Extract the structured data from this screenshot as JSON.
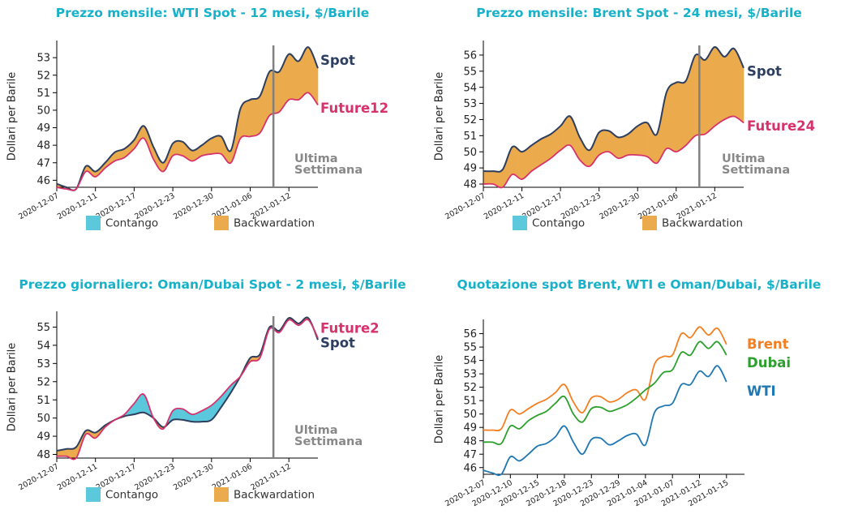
{
  "colors": {
    "title": "#17b1c9",
    "spot": "#2d3e5e",
    "future": "#d6336c",
    "contango": "#5bc8dc",
    "backwardation": "#ebab4d",
    "divider": "#808080",
    "annotation": "#888888",
    "brent": "#f47f20",
    "dubai": "#2ca02c",
    "wti": "#1f77b4"
  },
  "legend": {
    "contango": "Contango",
    "backwardation": "Backwardation"
  },
  "chart_data": [
    {
      "type": "area",
      "title": "Prezzo mensile: WTI Spot - 12 mesi, $/Barile",
      "ylabel": "Dollari per Barile",
      "ylim": [
        45.6,
        53.7
      ],
      "yticks": [
        46,
        47,
        48,
        49,
        50,
        51,
        52,
        53
      ],
      "xlim": [
        0,
        27
      ],
      "xticks": [
        {
          "x": 0,
          "label": "2020-12-07"
        },
        {
          "x": 4,
          "label": "2020-12-11"
        },
        {
          "x": 8,
          "label": "2020-12-17"
        },
        {
          "x": 12,
          "label": "2020-12-23"
        },
        {
          "x": 16,
          "label": "2020-12-30"
        },
        {
          "x": 20,
          "label": "2021-01-06"
        },
        {
          "x": 24,
          "label": "2021-01-12"
        }
      ],
      "x": [
        0,
        1,
        2,
        3,
        4,
        5,
        6,
        7,
        8,
        9,
        10,
        11,
        12,
        13,
        14,
        15,
        16,
        17,
        18,
        19,
        20,
        21,
        22,
        23,
        24,
        25,
        26,
        27
      ],
      "series": [
        {
          "name": "Spot",
          "values": [
            45.8,
            45.6,
            45.5,
            46.8,
            46.5,
            47.0,
            47.6,
            47.8,
            48.3,
            49.1,
            47.9,
            47.0,
            48.1,
            48.2,
            47.7,
            48.0,
            48.4,
            48.5,
            47.7,
            50.1,
            50.6,
            50.8,
            52.2,
            52.2,
            53.2,
            52.8,
            53.6,
            52.4
          ]
        },
        {
          "name": "Future12",
          "values": [
            45.6,
            45.5,
            45.5,
            46.5,
            46.2,
            46.7,
            47.1,
            47.3,
            47.8,
            48.4,
            47.2,
            46.5,
            47.4,
            47.4,
            47.1,
            47.4,
            47.5,
            47.5,
            47.0,
            48.4,
            48.5,
            48.7,
            49.7,
            49.9,
            50.6,
            50.6,
            51.0,
            50.3
          ]
        }
      ],
      "divider_x": 22.4,
      "divider_label": [
        "Ultima",
        "Settimana"
      ]
    },
    {
      "type": "area",
      "title": "Prezzo mensile: Brent Spot - 24 mesi, $/Barile",
      "ylabel": "Dollari per Barile",
      "ylim": [
        47.8,
        56.6
      ],
      "yticks": [
        48,
        49,
        50,
        51,
        52,
        53,
        54,
        55,
        56
      ],
      "xlim": [
        0,
        27
      ],
      "xticks": [
        {
          "x": 0,
          "label": "2020-12-07"
        },
        {
          "x": 4,
          "label": "2020-12-11"
        },
        {
          "x": 8,
          "label": "2020-12-17"
        },
        {
          "x": 12,
          "label": "2020-12-23"
        },
        {
          "x": 16,
          "label": "2020-12-30"
        },
        {
          "x": 20,
          "label": "2021-01-06"
        },
        {
          "x": 24,
          "label": "2021-01-12"
        }
      ],
      "x": [
        0,
        1,
        2,
        3,
        4,
        5,
        6,
        7,
        8,
        9,
        10,
        11,
        12,
        13,
        14,
        15,
        16,
        17,
        18,
        19,
        20,
        21,
        22,
        23,
        24,
        25,
        26,
        27
      ],
      "series": [
        {
          "name": "Spot",
          "values": [
            48.8,
            48.8,
            48.9,
            50.3,
            50.0,
            50.4,
            50.8,
            51.1,
            51.6,
            52.2,
            50.9,
            50.1,
            51.2,
            51.3,
            50.9,
            51.1,
            51.6,
            51.8,
            51.1,
            53.7,
            54.3,
            54.4,
            56.0,
            55.7,
            56.5,
            55.9,
            56.4,
            55.2
          ]
        },
        {
          "name": "Future24",
          "values": [
            48.0,
            48.0,
            47.8,
            48.6,
            48.3,
            48.8,
            49.2,
            49.6,
            50.1,
            50.4,
            49.5,
            49.1,
            49.8,
            50.0,
            49.6,
            49.8,
            49.8,
            49.7,
            49.3,
            50.2,
            50.0,
            50.4,
            51.0,
            51.1,
            51.6,
            52.0,
            52.2,
            51.8
          ]
        }
      ],
      "divider_x": 22.4,
      "divider_label": [
        "Ultima",
        "Settimana"
      ]
    },
    {
      "type": "area",
      "title": "Prezzo giornaliero: Oman/Dubai Spot - 2 mesi, $/Barile",
      "ylabel": "Dollari per Barile",
      "ylim": [
        47.8,
        55.6
      ],
      "yticks": [
        48,
        49,
        50,
        51,
        52,
        53,
        54,
        55
      ],
      "xlim": [
        0,
        27
      ],
      "xticks": [
        {
          "x": 0,
          "label": "2020-12-07"
        },
        {
          "x": 4,
          "label": "2020-12-11"
        },
        {
          "x": 8,
          "label": "2020-12-17"
        },
        {
          "x": 12,
          "label": "2020-12-23"
        },
        {
          "x": 16,
          "label": "2020-12-30"
        },
        {
          "x": 20,
          "label": "2021-01-06"
        },
        {
          "x": 24,
          "label": "2021-01-12"
        }
      ],
      "x": [
        0,
        1,
        2,
        3,
        4,
        5,
        6,
        7,
        8,
        9,
        10,
        11,
        12,
        13,
        14,
        15,
        16,
        17,
        18,
        19,
        20,
        21,
        22,
        23,
        24,
        25,
        26,
        27
      ],
      "series": [
        {
          "name": "Spot",
          "values": [
            48.2,
            48.3,
            48.4,
            49.3,
            49.2,
            49.6,
            49.9,
            50.1,
            50.2,
            50.3,
            50.0,
            49.5,
            49.9,
            49.9,
            49.8,
            49.8,
            49.9,
            50.6,
            51.4,
            52.3,
            53.3,
            53.5,
            55.0,
            54.8,
            55.5,
            55.2,
            55.5,
            54.3
          ]
        },
        {
          "name": "Future2",
          "values": [
            47.9,
            47.9,
            47.8,
            49.1,
            48.9,
            49.5,
            49.9,
            50.2,
            50.8,
            51.3,
            50.0,
            49.4,
            50.4,
            50.5,
            50.2,
            50.4,
            50.7,
            51.2,
            51.8,
            52.3,
            53.1,
            53.3,
            54.9,
            54.7,
            55.4,
            55.1,
            55.4,
            54.4
          ]
        }
      ],
      "divider_x": 22.4,
      "divider_label": [
        "Ultima",
        "Settimana"
      ]
    },
    {
      "type": "line",
      "title": "Quotazione spot Brent, WTI e Oman/Dubai, $/Barile",
      "ylabel": "Dollari per Barile",
      "ylim": [
        45.5,
        56.7
      ],
      "yticks": [
        46,
        47,
        48,
        49,
        50,
        51,
        52,
        53,
        54,
        55,
        56
      ],
      "xlim": [
        0,
        29
      ],
      "xticks": [
        {
          "x": 0,
          "label": "2020-12-07"
        },
        {
          "x": 3,
          "label": "2020-12-10"
        },
        {
          "x": 6,
          "label": "2020-12-15"
        },
        {
          "x": 9,
          "label": "2020-12-18"
        },
        {
          "x": 12,
          "label": "2020-12-23"
        },
        {
          "x": 15,
          "label": "2020-12-29"
        },
        {
          "x": 18,
          "label": "2021-01-04"
        },
        {
          "x": 21,
          "label": "2021-01-07"
        },
        {
          "x": 24,
          "label": "2021-01-12"
        },
        {
          "x": 27,
          "label": "2021-01-15"
        }
      ],
      "x": [
        0,
        1,
        2,
        3,
        4,
        5,
        6,
        7,
        8,
        9,
        10,
        11,
        12,
        13,
        14,
        15,
        16,
        17,
        18,
        19,
        20,
        21,
        22,
        23,
        24,
        25,
        26,
        27
      ],
      "series": [
        {
          "name": "Brent",
          "values": [
            48.8,
            48.8,
            48.9,
            50.3,
            50.0,
            50.4,
            50.8,
            51.1,
            51.6,
            52.2,
            50.9,
            50.1,
            51.2,
            51.3,
            50.9,
            51.1,
            51.6,
            51.8,
            51.1,
            53.7,
            54.3,
            54.4,
            56.0,
            55.7,
            56.5,
            55.9,
            56.4,
            55.2
          ]
        },
        {
          "name": "Dubai",
          "values": [
            47.9,
            47.9,
            47.8,
            49.1,
            48.9,
            49.5,
            49.9,
            50.2,
            50.8,
            51.3,
            50.0,
            49.4,
            50.4,
            50.5,
            50.2,
            50.4,
            50.7,
            51.2,
            51.8,
            52.3,
            53.1,
            53.3,
            54.6,
            54.4,
            55.4,
            54.9,
            55.4,
            54.4
          ]
        },
        {
          "name": "WTI",
          "values": [
            45.8,
            45.6,
            45.5,
            46.8,
            46.5,
            47.0,
            47.6,
            47.8,
            48.3,
            49.1,
            47.9,
            47.0,
            48.1,
            48.2,
            47.7,
            48.0,
            48.4,
            48.5,
            47.7,
            50.1,
            50.6,
            50.8,
            52.2,
            52.2,
            53.2,
            52.8,
            53.6,
            52.4
          ]
        }
      ]
    }
  ]
}
